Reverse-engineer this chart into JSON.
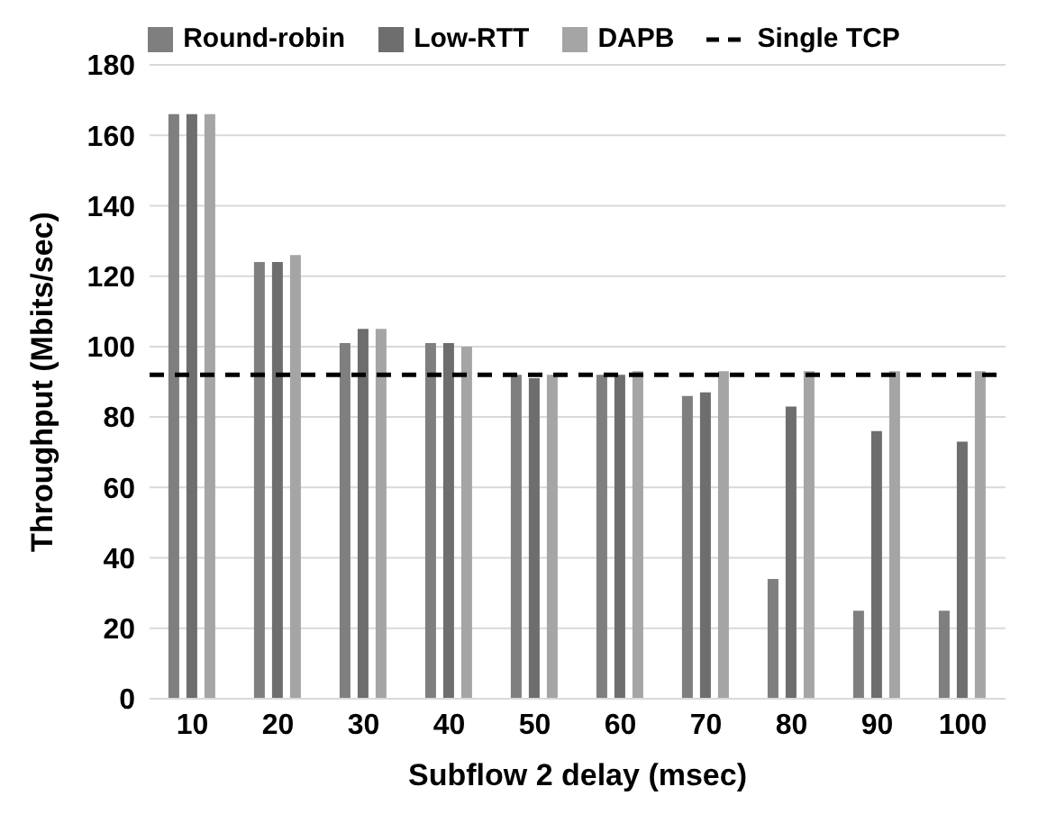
{
  "chart_data": {
    "type": "bar",
    "xlabel": "Subflow 2 delay (msec)",
    "ylabel": "Throughput (Mbits/sec)",
    "categories": [
      "10",
      "20",
      "30",
      "40",
      "50",
      "60",
      "70",
      "80",
      "90",
      "100"
    ],
    "series": [
      {
        "name": "Round-robin",
        "color": "#7f7f7f",
        "values": [
          166,
          124,
          101,
          101,
          92,
          92,
          86,
          34,
          25,
          25
        ]
      },
      {
        "name": "Low-RTT",
        "color": "#6e6e6e",
        "values": [
          166,
          124,
          105,
          101,
          91,
          92,
          87,
          83,
          76,
          73
        ]
      },
      {
        "name": "DAPB",
        "color": "#a5a5a5",
        "values": [
          166,
          126,
          105,
          100,
          92,
          93,
          93,
          93,
          93,
          93
        ]
      }
    ],
    "ref_lines": [
      {
        "axis": "y",
        "value": 92,
        "label": "Single TCP",
        "color": "#000000",
        "line_style": "dashed"
      }
    ],
    "ylim": [
      0,
      180
    ],
    "yticks": [
      0,
      20,
      40,
      60,
      80,
      100,
      120,
      140,
      160,
      180
    ],
    "grid": "y",
    "legend": "top"
  }
}
